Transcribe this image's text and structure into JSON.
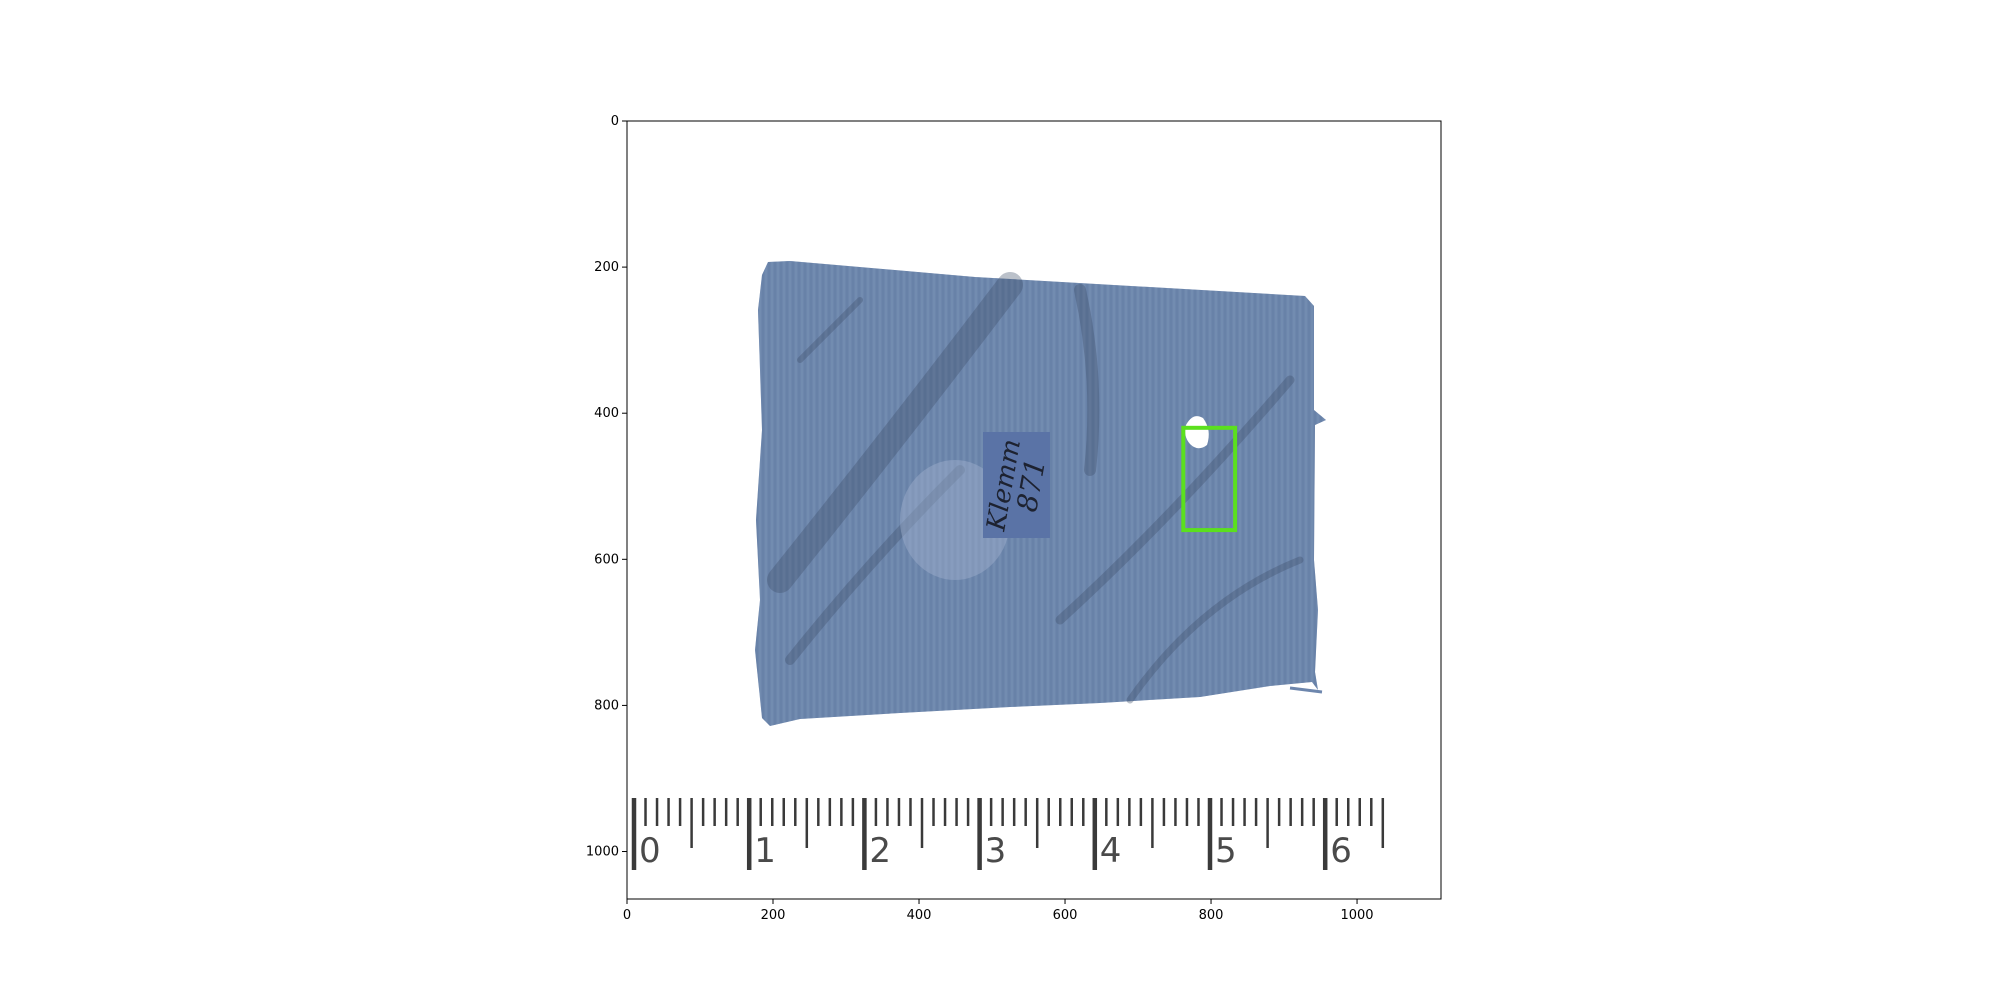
{
  "figure": {
    "x_ticks": [
      "0",
      "200",
      "400",
      "600",
      "800",
      "1000"
    ],
    "y_ticks": [
      "0",
      "200",
      "400",
      "600",
      "800",
      "1000"
    ],
    "x_range": [
      0,
      1115
    ],
    "y_range": [
      1065,
      0
    ]
  },
  "fragment": {
    "color": "#6d86ad",
    "label_patch_color": "#5a73a6",
    "inscription_lines": [
      "Klemm",
      "871"
    ]
  },
  "ruler": {
    "numbers": [
      "0",
      "1",
      "2",
      "3",
      "4",
      "5",
      "6"
    ]
  },
  "highlight_box": {
    "color": "#5be01e",
    "x_range": [
      762,
      833
    ],
    "y_range": [
      420,
      560
    ]
  }
}
